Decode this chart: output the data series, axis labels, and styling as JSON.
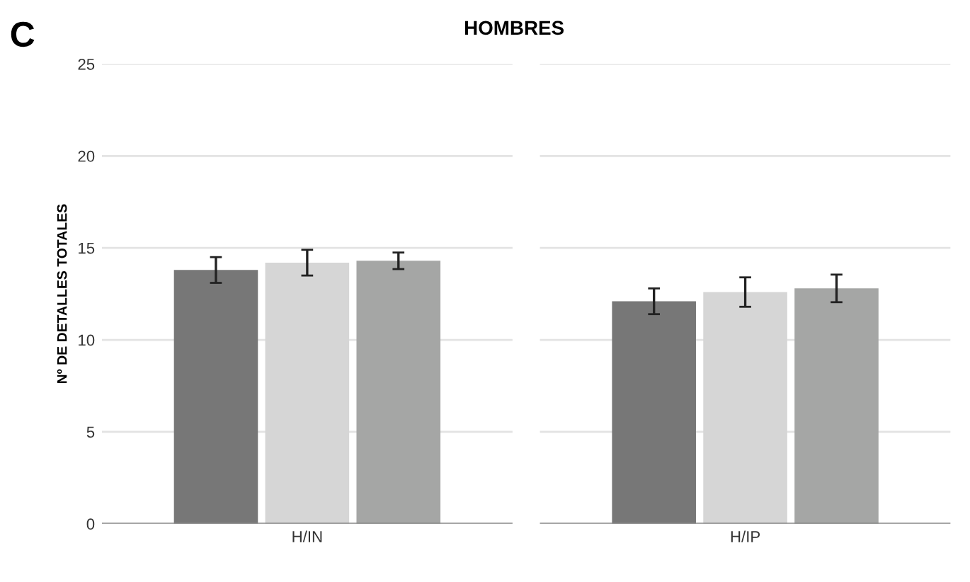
{
  "chart_data": {
    "type": "bar",
    "title": "HOMBRES",
    "annotations": [
      "C"
    ],
    "ylabel": "Nº DE DETALLES TOTALES",
    "categories": [
      "H/IN",
      "H/IP"
    ],
    "ylim": [
      0,
      25
    ],
    "yticks": [
      0,
      5,
      10,
      15,
      20,
      25
    ],
    "grid": "y",
    "series": [
      {
        "color": "#777777",
        "values": [
          13.8,
          12.1
        ],
        "errors": [
          0.7,
          0.7
        ]
      },
      {
        "color": "#d6d6d6",
        "values": [
          14.2,
          12.6
        ],
        "errors": [
          0.7,
          0.8
        ]
      },
      {
        "color": "#a5a6a5",
        "values": [
          14.3,
          12.8
        ],
        "errors": [
          0.45,
          0.75
        ]
      }
    ]
  }
}
